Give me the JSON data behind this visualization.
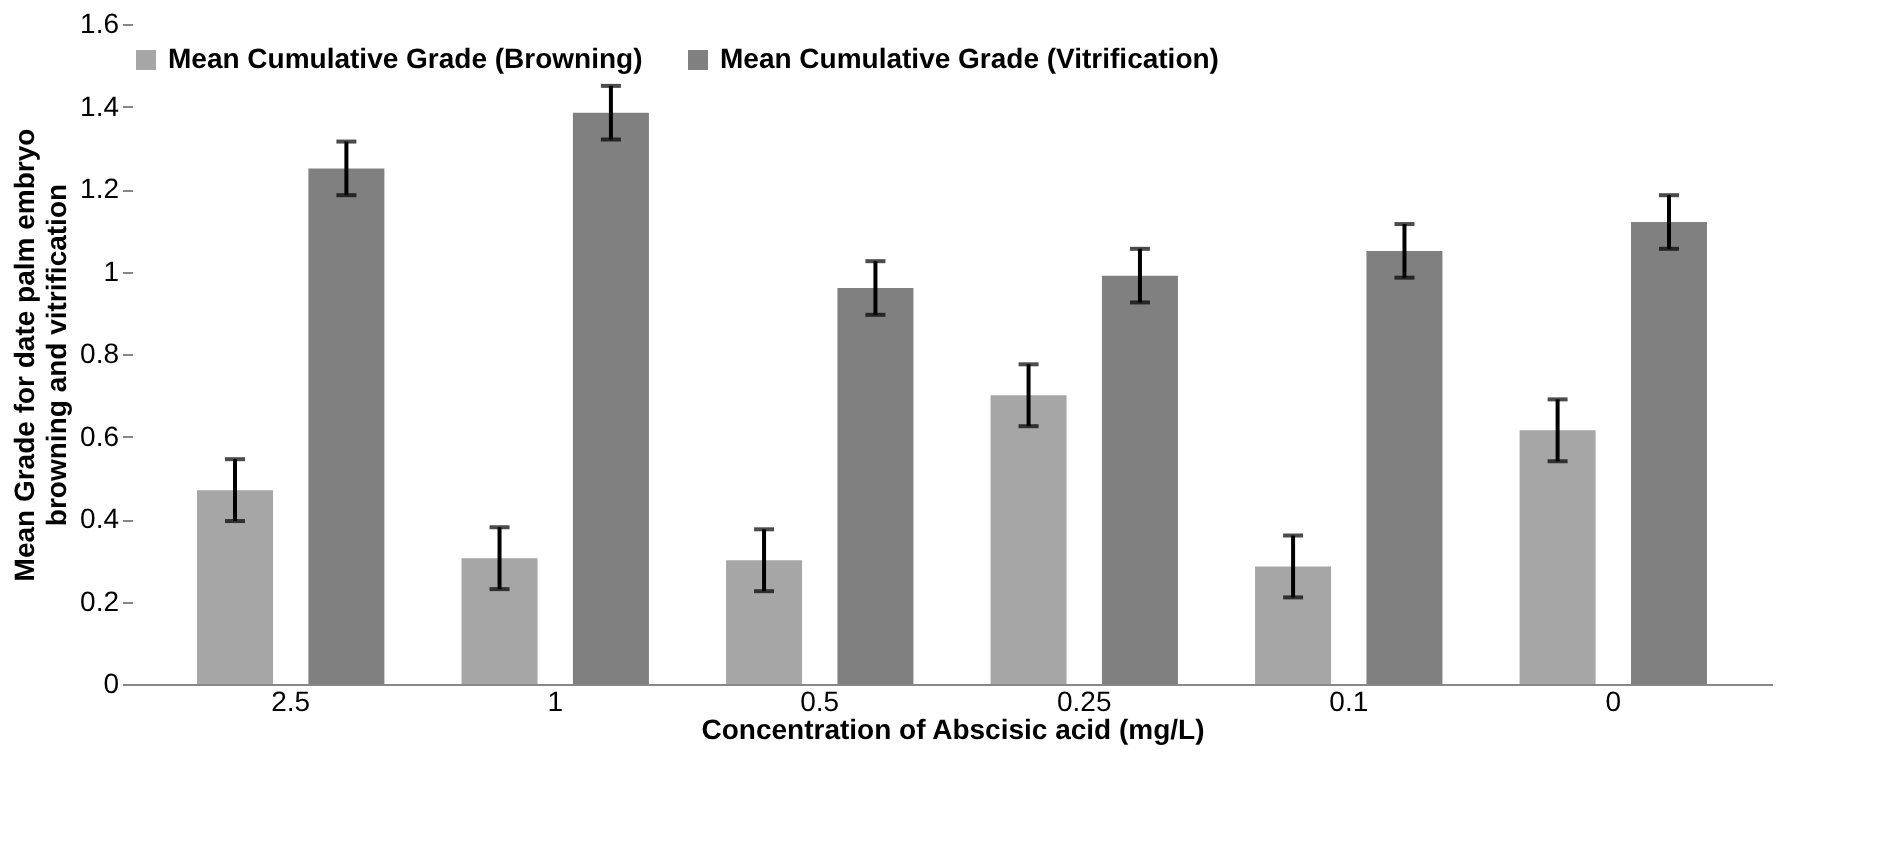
{
  "chart_data": {
    "type": "bar",
    "categories": [
      "2.5",
      "1",
      "0.5",
      "0.25",
      "0.1",
      "0"
    ],
    "xlabel": "Concentration of Abscisic acid (mg/L)",
    "ylabel": "Mean Grade for date palm embryo browning and vitrification",
    "series": [
      {
        "name": "Mean Cumulative Grade (Browning)",
        "color": "#a6a6a6",
        "values": [
          0.47,
          0.305,
          0.3,
          0.7,
          0.285,
          0.615
        ],
        "errors": [
          0.075,
          0.075,
          0.075,
          0.075,
          0.075,
          0.075
        ]
      },
      {
        "name": "Mean Cumulative Grade (Vitrification)",
        "color": "#808080",
        "values": [
          1.25,
          1.385,
          0.96,
          0.99,
          1.05,
          1.12
        ],
        "errors": [
          0.065,
          0.065,
          0.065,
          0.065,
          0.065,
          0.065
        ]
      }
    ],
    "ylim": [
      0,
      1.6
    ],
    "yticks": [
      0,
      0.2,
      0.4,
      0.6,
      0.8,
      1,
      1.2,
      1.4,
      1.6
    ],
    "grid": false,
    "legend": "top"
  }
}
